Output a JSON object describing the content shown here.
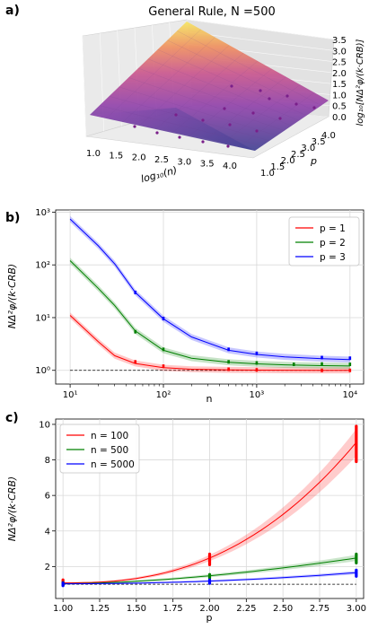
{
  "panel_labels": {
    "a": "a)",
    "b": "b)",
    "c": "c)"
  },
  "chart_data": [
    {
      "type": "surface",
      "title": "General Rule, N =500",
      "xlabel": "log₁₀(n)",
      "ylabel": "p",
      "zlabel": "log₁₀[NΔ²φ/(k·CRB)]",
      "x_ticks": [
        "1.0",
        "1.5",
        "2.0",
        "2.5",
        "3.0",
        "3.5",
        "4.0"
      ],
      "y_ticks": [
        "1.0",
        "1.5",
        "2.0",
        "2.5",
        "3.0",
        "3.5",
        "4.0"
      ],
      "z_ticks": [
        "0.0",
        "0.5",
        "1.0",
        "1.5",
        "2.0",
        "2.5",
        "3.0",
        "3.5"
      ],
      "x_range": [
        1.0,
        4.0
      ],
      "y_range": [
        1.0,
        4.0
      ],
      "z_range": [
        0.0,
        3.5
      ],
      "z_formula_note": "",
      "surface_corners": {
        "low_n_low_p": 0.05,
        "low_n_high_p": 3.6,
        "high_n_low_p": 0.0,
        "high_n_high_p": 0.3
      }
    },
    {
      "type": "line",
      "xlabel": "n",
      "ylabel": "NΔ²φ/(k·CRB)",
      "xscale": "log",
      "yscale": "log",
      "xlim": [
        7,
        14000
      ],
      "ylim": [
        0.55,
        1100
      ],
      "x_ticks": [
        "10¹",
        "10²",
        "10³",
        "10⁴"
      ],
      "y_ticks": [
        "10⁰",
        "10¹",
        "10²",
        "10³"
      ],
      "legend_position": "top-right",
      "reference_line": 1,
      "x": [
        10,
        20,
        30,
        50,
        100,
        200,
        500,
        1000,
        2000,
        5000,
        10000
      ],
      "series": [
        {
          "name": "p = 1",
          "color": "#ff0000",
          "values": [
            11,
            3.5,
            1.9,
            1.35,
            1.12,
            1.05,
            1.02,
            1.01,
            1.005,
            1.0,
            1.0
          ],
          "points_x": [
            50,
            100,
            500,
            1000,
            5000,
            10000
          ],
          "points_y": [
            1.45,
            1.2,
            1.05,
            1.02,
            1.0,
            1.0
          ]
        },
        {
          "name": "p = 2",
          "color": "#008000",
          "values": [
            120,
            36,
            17,
            5.6,
            2.4,
            1.7,
            1.42,
            1.33,
            1.27,
            1.23,
            1.21
          ],
          "points_x": [
            50,
            100,
            500,
            1000,
            2500,
            5000,
            10000
          ],
          "points_y": [
            5.4,
            2.5,
            1.45,
            1.38,
            1.3,
            1.32,
            1.3
          ]
        },
        {
          "name": "p = 3",
          "color": "#0000ff",
          "values": [
            740,
            230,
            105,
            30,
            9.5,
            4.3,
            2.4,
            2.0,
            1.8,
            1.66,
            1.6
          ],
          "points_x": [
            50,
            100,
            500,
            1000,
            5000,
            10000
          ],
          "points_y": [
            30,
            9.6,
            2.5,
            2.1,
            1.75,
            1.7
          ]
        }
      ]
    },
    {
      "type": "line",
      "xlabel": "p",
      "ylabel": "NΔ²φ/(k·CRB)",
      "xlim": [
        0.95,
        3.05
      ],
      "ylim": [
        0.2,
        10.3
      ],
      "x_ticks": [
        "1.00",
        "1.25",
        "1.50",
        "1.75",
        "2.00",
        "2.25",
        "2.50",
        "2.75",
        "3.00"
      ],
      "x_tick_values": [
        1.0,
        1.25,
        1.5,
        1.75,
        2.0,
        2.25,
        2.5,
        2.75,
        3.0
      ],
      "y_ticks": [
        "2",
        "4",
        "6",
        "8",
        "10"
      ],
      "y_tick_values": [
        2,
        4,
        6,
        8,
        10
      ],
      "legend_position": "top-left",
      "reference_line": 1,
      "series": [
        {
          "name": "n = 100",
          "color": "#ff0000",
          "a": 2.2,
          "points_p": [
            1,
            2,
            3
          ],
          "points_lo": [
            0.95,
            2.1,
            7.9
          ],
          "points_hi": [
            1.25,
            2.7,
            9.9
          ]
        },
        {
          "name": "n = 500",
          "color": "#008000",
          "a": 0.85,
          "points_p": [
            1,
            2,
            3
          ],
          "points_lo": [
            0.95,
            1.35,
            2.2
          ],
          "points_hi": [
            1.1,
            1.55,
            2.7
          ]
        },
        {
          "name": "n = 5000",
          "color": "#0000ff",
          "a": 0.3,
          "points_p": [
            1,
            2,
            3
          ],
          "points_lo": [
            0.92,
            1.05,
            1.45
          ],
          "points_hi": [
            1.08,
            1.25,
            1.8
          ]
        }
      ]
    }
  ]
}
